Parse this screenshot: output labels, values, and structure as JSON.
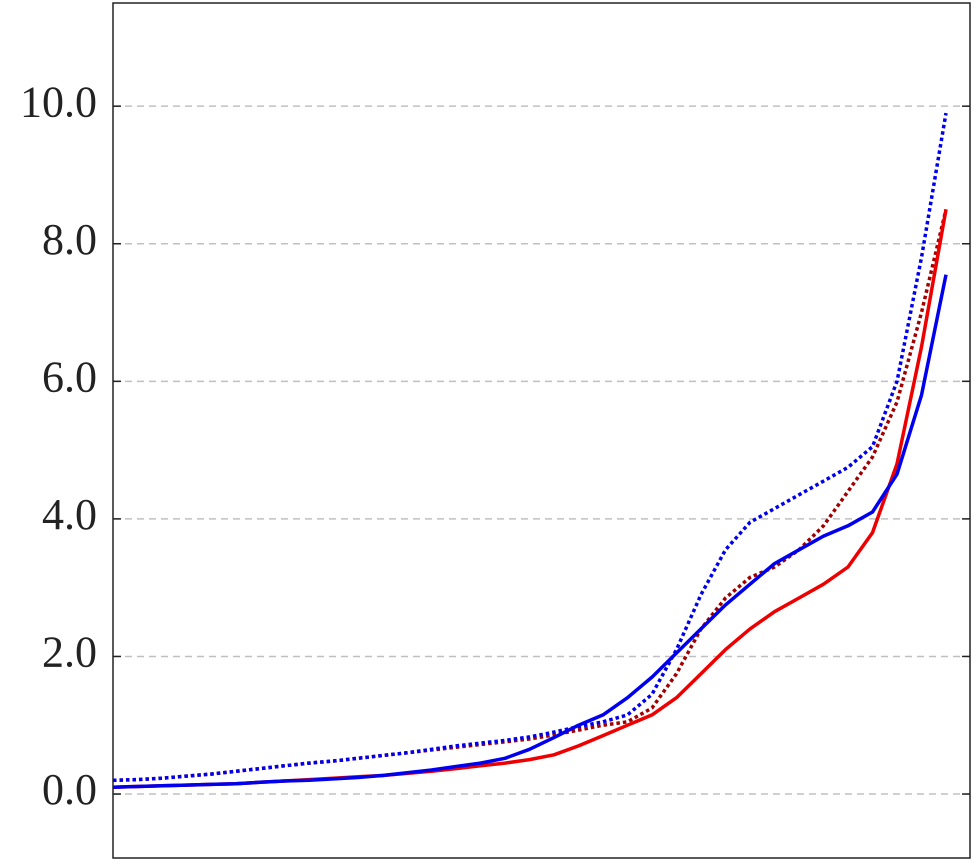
{
  "chart_data": {
    "type": "line",
    "ylim": [
      -0.93,
      11.5
    ],
    "yticks": [
      {
        "value": 0,
        "label": "0.0"
      },
      {
        "value": 2,
        "label": "2.0"
      },
      {
        "value": 4,
        "label": "4.0"
      },
      {
        "value": 6,
        "label": "6.0"
      },
      {
        "value": 8,
        "label": "8.0"
      },
      {
        "value": 10,
        "label": "10.0"
      }
    ],
    "grid": true,
    "series": [
      {
        "color": "#a00000",
        "style": "dotted",
        "values": [
          0.2,
          0.21,
          0.23,
          0.26,
          0.29,
          0.33,
          0.37,
          0.41,
          0.45,
          0.48,
          0.52,
          0.56,
          0.6,
          0.64,
          0.68,
          0.72,
          0.76,
          0.8,
          0.86,
          0.93,
          1.0,
          1.05,
          1.25,
          1.75,
          2.4,
          2.85,
          3.15,
          3.3,
          3.55,
          3.9,
          4.4,
          4.9,
          5.7,
          7.0,
          8.5
        ]
      },
      {
        "color": "#0000ee",
        "style": "dotted",
        "values": [
          0.2,
          0.21,
          0.23,
          0.26,
          0.29,
          0.33,
          0.37,
          0.41,
          0.45,
          0.48,
          0.52,
          0.56,
          0.6,
          0.65,
          0.7,
          0.74,
          0.78,
          0.83,
          0.9,
          0.98,
          1.05,
          1.15,
          1.45,
          2.1,
          2.9,
          3.55,
          3.95,
          4.15,
          4.35,
          4.55,
          4.75,
          5.05,
          6.0,
          7.8,
          9.9
        ]
      },
      {
        "color": "#ee0000",
        "style": "solid",
        "values": [
          0.1,
          0.11,
          0.12,
          0.13,
          0.14,
          0.15,
          0.17,
          0.19,
          0.21,
          0.23,
          0.25,
          0.27,
          0.3,
          0.33,
          0.37,
          0.41,
          0.45,
          0.5,
          0.57,
          0.7,
          0.85,
          1.0,
          1.15,
          1.4,
          1.75,
          2.1,
          2.4,
          2.65,
          2.85,
          3.05,
          3.3,
          3.8,
          4.8,
          6.5,
          8.5
        ]
      },
      {
        "color": "#0000ee",
        "style": "solid",
        "values": [
          0.1,
          0.11,
          0.12,
          0.13,
          0.14,
          0.15,
          0.17,
          0.19,
          0.2,
          0.22,
          0.24,
          0.27,
          0.31,
          0.35,
          0.4,
          0.45,
          0.52,
          0.65,
          0.82,
          1.0,
          1.15,
          1.4,
          1.7,
          2.05,
          2.4,
          2.75,
          3.05,
          3.35,
          3.55,
          3.75,
          3.9,
          4.1,
          4.65,
          5.8,
          7.55
        ]
      }
    ]
  }
}
